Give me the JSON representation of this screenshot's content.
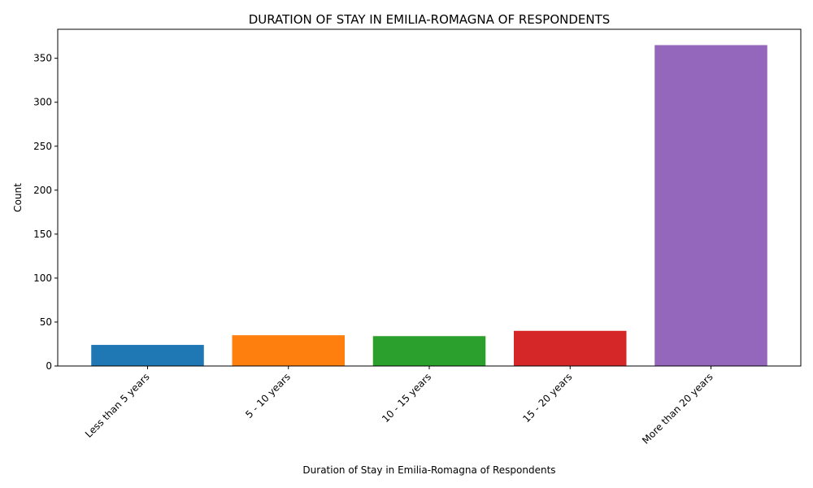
{
  "chart_data": {
    "type": "bar",
    "title": "DURATION OF STAY IN EMILIA-ROMAGNA OF RESPONDENTS",
    "xlabel": "Duration of Stay in Emilia-Romagna of Respondents",
    "ylabel": "Count",
    "categories": [
      "Less than 5 years",
      "5 - 10 years",
      "10 - 15 years",
      "15 - 20 years",
      "More than 20 years"
    ],
    "values": [
      24,
      35,
      34,
      40,
      365
    ],
    "colors": [
      "#1f77b4",
      "#ff7f0e",
      "#2ca02c",
      "#d62728",
      "#9467bd"
    ],
    "ylim": [
      0,
      383
    ],
    "yticks": [
      0,
      50,
      100,
      150,
      200,
      250,
      300,
      350
    ],
    "grid": false,
    "legend": "none"
  }
}
